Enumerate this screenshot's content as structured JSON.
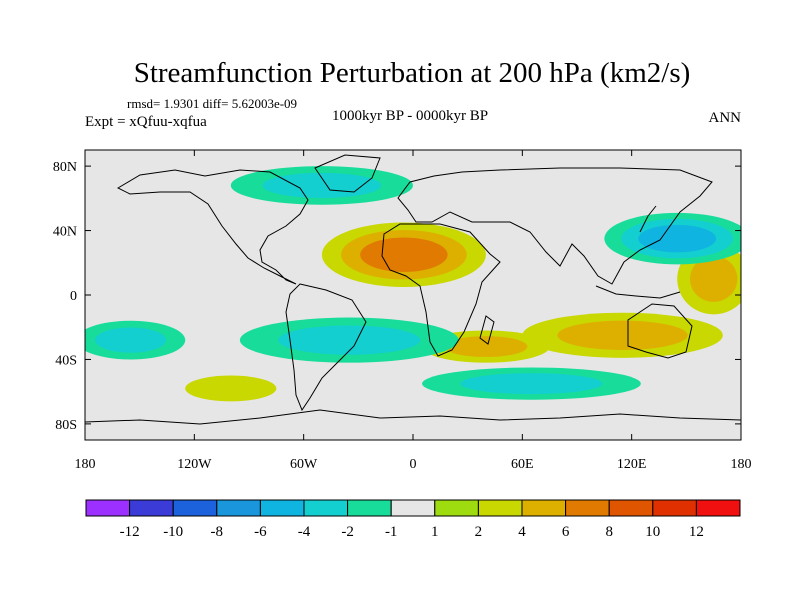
{
  "chart_data": {
    "type": "heatmap",
    "title": "Streamfunction Perturbation at 200 hPa (km2/s)",
    "stats_label": "rmsd= 1.9301 diff= 5.62003e-09",
    "period_label": "1000kyr BP - 0000kyr BP",
    "experiment_label": "Expt = xQfuu-xqfua",
    "season_label": "ANN",
    "xlim": [
      -180,
      180
    ],
    "ylim": [
      -90,
      90
    ],
    "x_ticks": [
      {
        "value": -180,
        "label": "180"
      },
      {
        "value": -120,
        "label": "120W"
      },
      {
        "value": -60,
        "label": "60W"
      },
      {
        "value": 0,
        "label": "0"
      },
      {
        "value": 60,
        "label": "60E"
      },
      {
        "value": 120,
        "label": "120E"
      },
      {
        "value": 180,
        "label": "180"
      }
    ],
    "y_ticks": [
      {
        "value": 80,
        "label": "80N"
      },
      {
        "value": 40,
        "label": "40N"
      },
      {
        "value": 0,
        "label": "0"
      },
      {
        "value": -40,
        "label": "40S"
      },
      {
        "value": -80,
        "label": "80S"
      }
    ],
    "colorbar": {
      "labels": [
        "-12",
        "-10",
        "-8",
        "-6",
        "-4",
        "-2",
        "-1",
        "1",
        "2",
        "4",
        "6",
        "8",
        "10",
        "12"
      ],
      "colors": [
        "#9b30ff",
        "#3b3bd8",
        "#1c62dc",
        "#1a96dc",
        "#10b4e0",
        "#13cfd0",
        "#18dc9a",
        "#e6e6e6",
        "#9edc10",
        "#c8d800",
        "#ddb000",
        "#e07a00",
        "#e05500",
        "#e03000",
        "#f01010"
      ]
    },
    "background_value_color": "#e6e6e6",
    "anomaly_regions": [
      {
        "name": "Sahara high",
        "lon": -5,
        "lat": 25,
        "rx": 45,
        "ry": 20,
        "levels": [
          2,
          4,
          6
        ]
      },
      {
        "name": "South Africa ridge",
        "lon": 40,
        "lat": -32,
        "rx": 35,
        "ry": 10,
        "levels": [
          2,
          4
        ]
      },
      {
        "name": "Australia ridge",
        "lon": 115,
        "lat": -25,
        "rx": 55,
        "ry": 14,
        "levels": [
          2,
          4
        ]
      },
      {
        "name": "NE Pacific",
        "lon": 165,
        "lat": 10,
        "rx": 20,
        "ry": 22,
        "levels": [
          2,
          4
        ]
      },
      {
        "name": "North Atlantic trough",
        "lon": -50,
        "lat": 68,
        "rx": 50,
        "ry": 12,
        "levels": [
          -1,
          -2
        ]
      },
      {
        "name": "North Pacific trough",
        "lon": 145,
        "lat": 35,
        "rx": 40,
        "ry": 16,
        "levels": [
          -1,
          -2,
          -4
        ]
      },
      {
        "name": "South Atlantic trough",
        "lon": -35,
        "lat": -28,
        "rx": 60,
        "ry": 14,
        "levels": [
          -1,
          -2
        ]
      },
      {
        "name": "Southern Ocean trough",
        "lon": 65,
        "lat": -55,
        "rx": 60,
        "ry": 10,
        "levels": [
          -1,
          -2
        ]
      },
      {
        "name": "SE Pacific trough",
        "lon": -155,
        "lat": -28,
        "rx": 30,
        "ry": 12,
        "levels": [
          -1,
          -2
        ]
      },
      {
        "name": "Antarctic ridge",
        "lon": -100,
        "lat": -58,
        "rx": 25,
        "ry": 8,
        "levels": [
          2
        ]
      }
    ]
  }
}
